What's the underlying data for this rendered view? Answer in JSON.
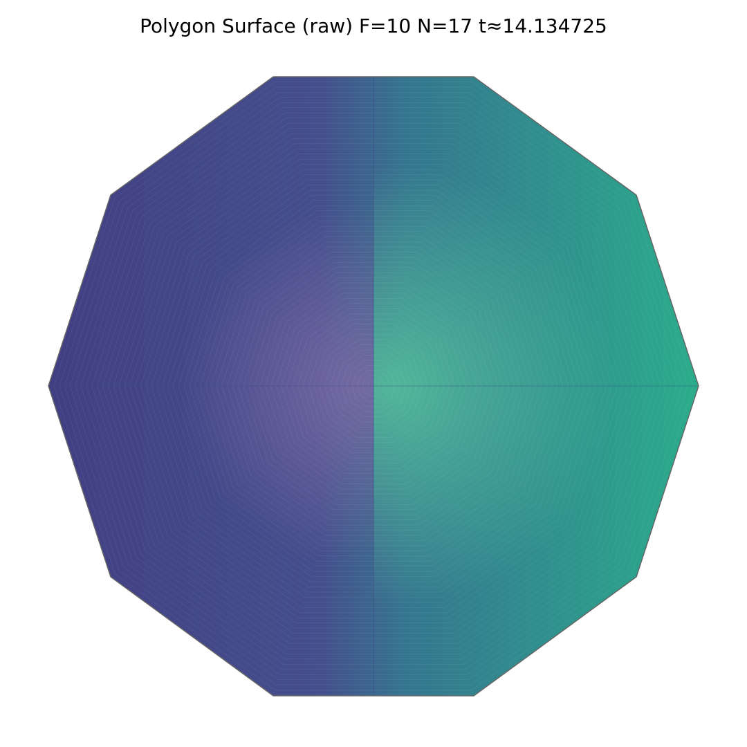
{
  "figure": {
    "title": "Polygon Surface (raw) F=10 N=17 t≈14.134725"
  },
  "surface": {
    "shape": "decagon",
    "sides": 10,
    "colors": {
      "left": "#413f84",
      "center_left": "#7d6ba6",
      "center_right": "#56c39c",
      "right": "#2bac8c",
      "outline": "#666666",
      "mesh_line": "#ffffff"
    }
  }
}
